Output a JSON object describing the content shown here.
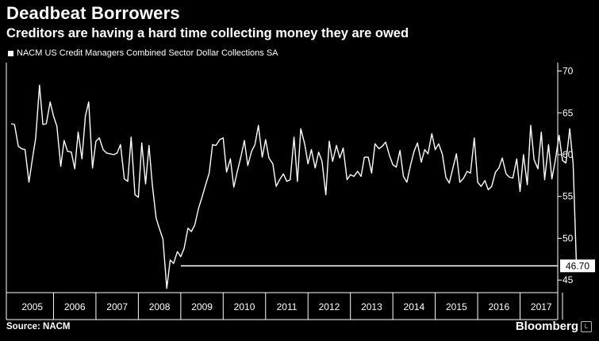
{
  "header": {
    "title": "Deadbeat Borrowers",
    "subtitle": "Creditors are having a hard time collecting money they are owed"
  },
  "footer": {
    "source": "Source: NACM",
    "brand": "Bloomberg",
    "brand_mark": "L"
  },
  "colors": {
    "background": "#000000",
    "line": "#ffffff",
    "grid": "#3a3a3a"
  },
  "chart_data": {
    "type": "line",
    "title": "Deadbeat Borrowers",
    "subtitle": "Creditors are having a hard time collecting money they are owed",
    "legend": "NACM US Credit Managers Combined Sector Dollar Collections SA",
    "legend_position": "top-left",
    "ylim": [
      43.5,
      71
    ],
    "xlim": [
      2005.0,
      2018.0
    ],
    "y_ticks": [
      45,
      50,
      55,
      60,
      65,
      70
    ],
    "x_tick_labels": [
      "2005",
      "2006",
      "2007",
      "2008",
      "2009",
      "2010",
      "2011",
      "2012",
      "2013",
      "2014",
      "2015",
      "2016",
      "2017"
    ],
    "y_axis_position": "right",
    "grid": false,
    "last_value_label": "46.70",
    "series": [
      {
        "name": "NACM US Credit Managers Combined Sector Dollar Collections SA",
        "x": [
          2005.0,
          2005.08,
          2005.17,
          2005.25,
          2005.33,
          2005.42,
          2005.5,
          2005.58,
          2005.67,
          2005.75,
          2005.83,
          2005.92,
          2006.0,
          2006.08,
          2006.17,
          2006.25,
          2006.33,
          2006.42,
          2006.5,
          2006.58,
          2006.67,
          2006.75,
          2006.83,
          2006.92,
          2007.0,
          2007.08,
          2007.17,
          2007.25,
          2007.33,
          2007.42,
          2007.5,
          2007.58,
          2007.67,
          2007.75,
          2007.83,
          2007.92,
          2008.0,
          2008.08,
          2008.17,
          2008.25,
          2008.33,
          2008.42,
          2008.5,
          2008.58,
          2008.67,
          2008.75,
          2008.83,
          2008.92,
          2009.0,
          2009.08,
          2009.17,
          2009.25,
          2009.33,
          2009.42,
          2009.5,
          2009.58,
          2009.67,
          2009.75,
          2009.83,
          2009.92,
          2010.0,
          2010.08,
          2010.17,
          2010.25,
          2010.33,
          2010.42,
          2010.5,
          2010.58,
          2010.67,
          2010.75,
          2010.83,
          2010.92,
          2011.0,
          2011.08,
          2011.17,
          2011.25,
          2011.33,
          2011.42,
          2011.5,
          2011.58,
          2011.67,
          2011.75,
          2011.83,
          2011.92,
          2012.0,
          2012.08,
          2012.17,
          2012.25,
          2012.33,
          2012.42,
          2012.5,
          2012.58,
          2012.67,
          2012.75,
          2012.83,
          2012.92,
          2013.0,
          2013.08,
          2013.17,
          2013.25,
          2013.33,
          2013.42,
          2013.5,
          2013.58,
          2013.67,
          2013.75,
          2013.83,
          2013.92,
          2014.0,
          2014.08,
          2014.17,
          2014.25,
          2014.33,
          2014.42,
          2014.5,
          2014.58,
          2014.67,
          2014.75,
          2014.83,
          2014.92,
          2015.0,
          2015.08,
          2015.17,
          2015.25,
          2015.33,
          2015.42,
          2015.5,
          2015.58,
          2015.67,
          2015.75,
          2015.83,
          2015.92,
          2016.0,
          2016.08,
          2016.17,
          2016.25,
          2016.33,
          2016.42,
          2016.5,
          2016.58,
          2016.67,
          2016.75,
          2016.83,
          2016.92,
          2017.0,
          2017.08,
          2017.17,
          2017.25,
          2017.33,
          2017.42,
          2017.5,
          2017.58,
          2017.67,
          2017.75,
          2017.83,
          2017.92
        ],
        "values": [
          63.7,
          63.6,
          61.0,
          60.7,
          60.6,
          56.7,
          59.4,
          62.0,
          68.3,
          63.6,
          63.7,
          66.3,
          64.6,
          63.4,
          58.6,
          61.7,
          60.4,
          60.3,
          58.3,
          62.7,
          59.5,
          64.6,
          66.3,
          58.4,
          61.6,
          62.0,
          60.6,
          60.2,
          60.1,
          60.0,
          60.2,
          61.2,
          57.1,
          56.8,
          62.1,
          55.2,
          54.9,
          61.4,
          56.5,
          61.1,
          56.4,
          52.4,
          51.1,
          49.9,
          44.0,
          47.4,
          47.0,
          48.4,
          47.8,
          48.8,
          51.2,
          50.8,
          51.6,
          53.6,
          54.9,
          56.3,
          57.8,
          61.2,
          61.1,
          61.8,
          62.0,
          57.9,
          59.5,
          56.1,
          57.9,
          59.8,
          61.7,
          58.7,
          60.4,
          61.2,
          63.5,
          59.7,
          61.8,
          59.6,
          58.9,
          56.2,
          57.0,
          57.7,
          56.8,
          57.0,
          62.1,
          56.8,
          63.1,
          61.3,
          58.9,
          60.6,
          58.4,
          60.3,
          59.2,
          55.2,
          61.6,
          59.2,
          61.1,
          59.6,
          60.8,
          57.0,
          57.6,
          57.4,
          58.0,
          57.4,
          59.7,
          59.7,
          57.8,
          61.3,
          60.7,
          61.0,
          61.5,
          59.9,
          58.8,
          58.5,
          60.5,
          57.4,
          56.7,
          58.8,
          60.4,
          61.4,
          59.1,
          60.6,
          60.1,
          62.5,
          60.6,
          61.3,
          60.0,
          57.3,
          56.6,
          58.5,
          60.1,
          56.7,
          57.2,
          58.0,
          57.8,
          62.0,
          56.7,
          56.2,
          56.9,
          55.8,
          56.2,
          57.9,
          58.4,
          59.6,
          57.7,
          57.3,
          57.2,
          59.5,
          55.6,
          60.0,
          56.4,
          63.5,
          59.4,
          58.3,
          62.7,
          57.0,
          61.2,
          57.1,
          59.3,
          62.3
        ]
      }
    ],
    "trailing_points": {
      "x": [
        2018.0,
        2018.08,
        2018.17,
        2018.25,
        2018.33
      ],
      "values": [
        59.3,
        59.0,
        63.1,
        58.9,
        46.7
      ]
    }
  }
}
